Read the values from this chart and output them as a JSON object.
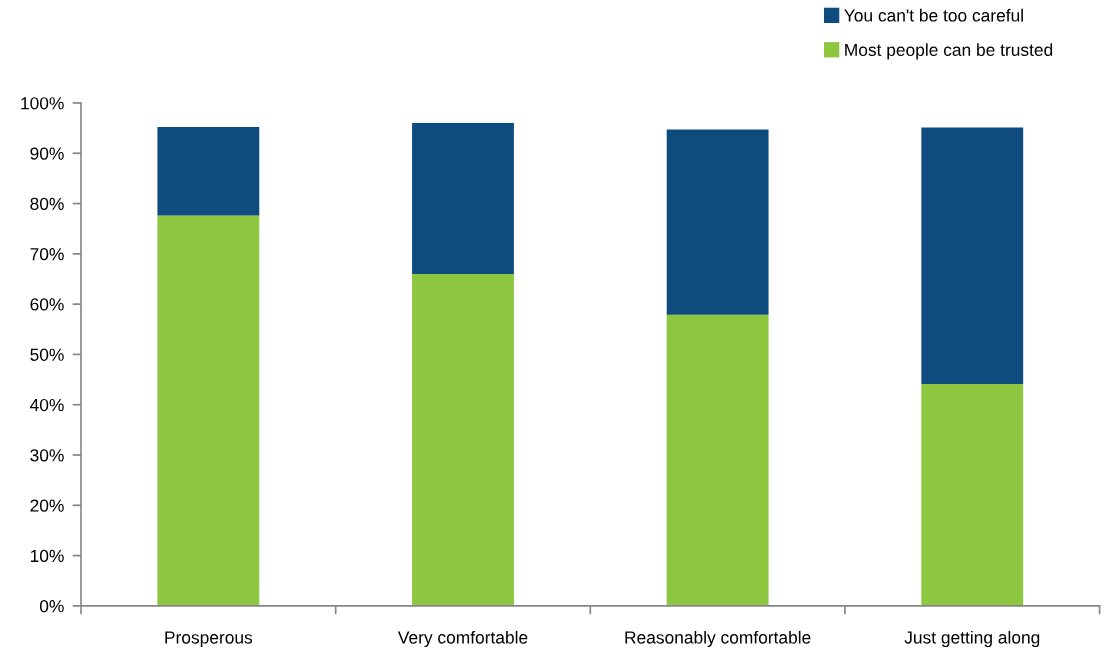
{
  "chart_data": {
    "type": "bar",
    "stacked": true,
    "categories": [
      "Prosperous",
      "Very comfortable",
      "Reasonably comfortable",
      "Just getting along"
    ],
    "series": [
      {
        "name": "Most people can be trusted",
        "color": "#8dc63f",
        "values": [
          77.6,
          66.0,
          57.9,
          44.1
        ]
      },
      {
        "name": "You can't be too careful",
        "color": "#0e4b7f",
        "values": [
          17.6,
          30.0,
          36.8,
          51.0
        ]
      }
    ],
    "ylim": [
      0,
      100
    ],
    "yticks": [
      {
        "value": 0,
        "label": "0%"
      },
      {
        "value": 10,
        "label": "10%"
      },
      {
        "value": 20,
        "label": "20%"
      },
      {
        "value": 30,
        "label": "30%"
      },
      {
        "value": 40,
        "label": "40%"
      },
      {
        "value": 50,
        "label": "50%"
      },
      {
        "value": 60,
        "label": "60%"
      },
      {
        "value": 70,
        "label": "70%"
      },
      {
        "value": 80,
        "label": "80%"
      },
      {
        "value": 90,
        "label": "90%"
      },
      {
        "value": 100,
        "label": "100%"
      }
    ],
    "grid": false,
    "legend": "top right"
  }
}
